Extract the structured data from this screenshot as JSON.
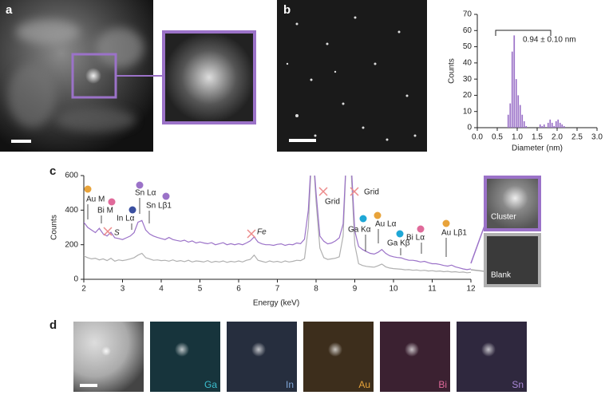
{
  "panel_labels": [
    "a",
    "b",
    "c",
    "d"
  ],
  "chart_data": [
    {
      "type": "histogram",
      "xlabel": "Diameter (nm)",
      "ylabel": "Counts",
      "annotation": "0.94 ± 0.10 nm",
      "color": "#9b72c8",
      "bins": [
        0.7,
        0.75,
        0.8,
        0.85,
        0.9,
        0.95,
        1.0,
        1.05,
        1.1,
        1.15,
        1.2,
        1.25,
        1.3,
        1.35,
        1.4,
        1.45,
        1.5,
        1.55,
        1.6,
        1.65,
        1.7,
        1.75,
        1.8,
        1.85,
        1.9,
        1.95,
        2.0,
        2.05,
        2.1,
        2.15,
        2.2,
        2.25
      ],
      "values": [
        0,
        8,
        15,
        47,
        57,
        30,
        20,
        14,
        8,
        4,
        1,
        0,
        0,
        0,
        0,
        0,
        0,
        2,
        1,
        2,
        0,
        3,
        5,
        3,
        1,
        4,
        5,
        3,
        2,
        1,
        0
      ],
      "xlim": [
        0,
        3
      ],
      "ylim": [
        0,
        70
      ],
      "xticks": [
        {
          "value": 0,
          "label": "0.0"
        },
        0.5,
        {
          "value": 1,
          "label": "1.0"
        },
        1.5,
        {
          "value": 2,
          "label": "2.0"
        },
        2.5,
        {
          "value": 3,
          "label": "3.0"
        }
      ],
      "yticks": [
        0,
        10,
        20,
        30,
        40,
        50,
        60,
        70
      ]
    },
    {
      "type": "line",
      "xlabel": "Energy (keV)",
      "ylabel": "Counts",
      "x": [
        2,
        2.1,
        2.2,
        2.3,
        2.4,
        2.5,
        2.6,
        2.7,
        2.8,
        2.9,
        3,
        3.1,
        3.2,
        3.3,
        3.4,
        3.5,
        3.6,
        3.7,
        3.8,
        3.9,
        4,
        4.1,
        4.2,
        4.3,
        4.4,
        4.5,
        4.6,
        4.7,
        4.8,
        4.9,
        5,
        5.1,
        5.2,
        5.3,
        5.4,
        5.5,
        5.6,
        5.7,
        5.8,
        5.9,
        6,
        6.1,
        6.2,
        6.3,
        6.4,
        6.5,
        6.6,
        6.7,
        6.8,
        6.9,
        7,
        7.1,
        7.2,
        7.3,
        7.4,
        7.5,
        7.6,
        7.7,
        7.8,
        7.9,
        8,
        8.1,
        8.2,
        8.3,
        8.4,
        8.5,
        8.6,
        8.7,
        8.8,
        8.9,
        9,
        9.1,
        9.2,
        9.3,
        9.4,
        9.5,
        9.6,
        9.7,
        9.8,
        9.9,
        10,
        10.1,
        10.2,
        10.3,
        10.4,
        10.5,
        10.6,
        10.7,
        10.8,
        10.9,
        11,
        11.1,
        11.2,
        11.3,
        11.4,
        11.5,
        11.6,
        11.7,
        11.8,
        11.9,
        12
      ],
      "series": [
        {
          "name": "Cluster",
          "color": "#9b72c8",
          "values": [
            330,
            300,
            285,
            270,
            295,
            262,
            250,
            272,
            240,
            236,
            230,
            240,
            250,
            270,
            330,
            340,
            285,
            262,
            250,
            242,
            236,
            230,
            242,
            230,
            225,
            220,
            226,
            215,
            222,
            210,
            216,
            210,
            206,
            212,
            200,
            206,
            212,
            200,
            206,
            200,
            206,
            200,
            210,
            222,
            245,
            215,
            205,
            200,
            200,
            196,
            202,
            205,
            196,
            202,
            200,
            210,
            206,
            232,
            400,
            800,
            500,
            250,
            220,
            205,
            210,
            222,
            240,
            320,
            800,
            700,
            280,
            190,
            172,
            160,
            150,
            146,
            156,
            172,
            150,
            136,
            130,
            126,
            124,
            116,
            110,
            110,
            106,
            100,
            104,
            96,
            90,
            90,
            86,
            80,
            76,
            82,
            72,
            66,
            60,
            56,
            60
          ]
        },
        {
          "name": "Blank",
          "color": "#b0b0b0",
          "values": [
            135,
            125,
            118,
            122,
            112,
            118,
            108,
            122,
            105,
            112,
            108,
            112,
            118,
            125,
            140,
            150,
            125,
            118,
            110,
            112,
            108,
            110,
            105,
            112,
            104,
            108,
            102,
            110,
            100,
            106,
            104,
            100,
            108,
            98,
            104,
            100,
            106,
            98,
            104,
            100,
            106,
            100,
            110,
            115,
            140,
            110,
            104,
            98,
            106,
            100,
            104,
            98,
            106,
            100,
            104,
            110,
            108,
            120,
            300,
            800,
            450,
            180,
            125,
            115,
            118,
            122,
            130,
            250,
            800,
            650,
            200,
            90,
            80,
            75,
            72,
            70,
            78,
            88,
            72,
            65,
            62,
            60,
            58,
            55,
            56,
            52,
            54,
            50,
            52,
            48,
            50,
            46,
            48,
            44,
            46,
            42,
            44,
            40,
            42,
            38,
            40
          ]
        }
      ],
      "xlim": [
        2,
        12
      ],
      "ylim": [
        0,
        600
      ],
      "xticks": [
        2,
        3,
        4,
        5,
        6,
        7,
        8,
        9,
        10,
        11,
        12
      ],
      "yticks": [
        0,
        200,
        400,
        600
      ],
      "annotations": [
        {
          "text": "Au M",
          "color": "#e8a33a"
        },
        {
          "text": "Bi M",
          "color": "#e06a9a"
        },
        {
          "text": "In Lα",
          "color": "#3a4fa0"
        },
        {
          "text": "S",
          "marker": "x"
        },
        {
          "text": "Sn Lα",
          "color": "#9b72c8"
        },
        {
          "text": "Sn Lβ1",
          "color": "#9b72c8"
        },
        {
          "text": "Fe",
          "marker": "x"
        },
        {
          "text": "Grid",
          "marker": "x"
        },
        {
          "text": "Grid",
          "marker": "x"
        },
        {
          "text": "Ga Kα",
          "color": "#1ea7d6"
        },
        {
          "text": "Au Lα",
          "color": "#e8a33a"
        },
        {
          "text": "Ga Kβ",
          "color": "#1ea7d6"
        },
        {
          "text": "Bi Lα",
          "color": "#e06a9a"
        },
        {
          "text": "Au Lβ1",
          "color": "#e8a33a"
        }
      ]
    }
  ],
  "panel_d_maps": [
    {
      "text": "Ga",
      "color": "#3bbfcf"
    },
    {
      "text": "In",
      "color": "#7fa6d8"
    },
    {
      "text": "Au",
      "color": "#e8a33a"
    },
    {
      "text": "Bi",
      "color": "#e06a9a"
    },
    {
      "text": "Sn",
      "color": "#a987d6"
    }
  ]
}
